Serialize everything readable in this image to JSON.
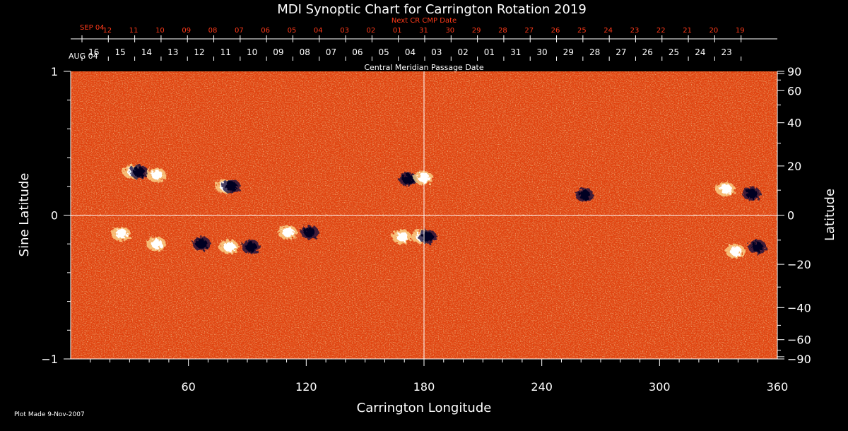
{
  "chart_data": {
    "type": "heatmap",
    "title": "MDI Synoptic Chart for Carrington Rotation 2019",
    "xlabel": "Carrington Longitude",
    "ylabel_left": "Sine Latitude",
    "ylabel_right": "Latitude",
    "xlim": [
      0,
      360
    ],
    "ylim": [
      -1,
      1
    ],
    "x_ticks": [
      60,
      120,
      180,
      240,
      300,
      360
    ],
    "y_ticks_left": [
      {
        "value": 1,
        "label": "1"
      },
      {
        "value": 0,
        "label": "0"
      },
      {
        "value": -1,
        "label": "−1"
      }
    ],
    "y_ticks_right_deg": [
      {
        "deg": 90,
        "label": "90"
      },
      {
        "deg": 60,
        "label": "60"
      },
      {
        "deg": 40,
        "label": "40"
      },
      {
        "deg": 20,
        "label": "20"
      },
      {
        "deg": 0,
        "label": "0"
      },
      {
        "deg": -20,
        "label": "−20"
      },
      {
        "deg": -40,
        "label": "−40"
      },
      {
        "deg": -60,
        "label": "−60"
      },
      {
        "deg": -90,
        "label": "−90"
      }
    ],
    "top_axis_next": {
      "title": "Next CR CMP Date",
      "start_label": "SEP 04",
      "days": [
        "12",
        "11",
        "10",
        "09",
        "08",
        "07",
        "06",
        "05",
        "04",
        "03",
        "02",
        "01",
        "31",
        "30",
        "29",
        "28",
        "27",
        "26",
        "25",
        "24",
        "23",
        "22",
        "21",
        "20",
        "19"
      ]
    },
    "top_axis_cmp": {
      "title": "Central Meridian Passage Date",
      "start_label": "AUG 04",
      "days": [
        "16",
        "15",
        "14",
        "13",
        "12",
        "11",
        "10",
        "09",
        "08",
        "07",
        "06",
        "05",
        "04",
        "03",
        "02",
        "01",
        "31",
        "30",
        "29",
        "28",
        "27",
        "26",
        "25",
        "24",
        "23"
      ]
    },
    "colors": {
      "background_field": "#e2430f",
      "positive_polarity": "#ffffff",
      "negative_polarity": "#000022",
      "axis": "#ffffff",
      "next_cr_text": "#ff3a1a"
    },
    "active_regions": [
      {
        "lon": 33,
        "sinlat": 0.3,
        "polarity": "mixed"
      },
      {
        "lon": 45,
        "sinlat": 0.28,
        "polarity": "positive"
      },
      {
        "lon": 80,
        "sinlat": 0.2,
        "polarity": "mixed"
      },
      {
        "lon": 170,
        "sinlat": 0.25,
        "polarity": "negative"
      },
      {
        "lon": 181,
        "sinlat": 0.26,
        "polarity": "positive"
      },
      {
        "lon": 260,
        "sinlat": 0.14,
        "polarity": "negative"
      },
      {
        "lon": 335,
        "sinlat": 0.18,
        "polarity": "positive"
      },
      {
        "lon": 345,
        "sinlat": 0.15,
        "polarity": "negative"
      },
      {
        "lon": 27,
        "sinlat": -0.13,
        "polarity": "positive"
      },
      {
        "lon": 45,
        "sinlat": -0.2,
        "polarity": "positive"
      },
      {
        "lon": 65,
        "sinlat": -0.2,
        "polarity": "negative"
      },
      {
        "lon": 82,
        "sinlat": -0.22,
        "polarity": "positive"
      },
      {
        "lon": 90,
        "sinlat": -0.22,
        "polarity": "negative"
      },
      {
        "lon": 112,
        "sinlat": -0.12,
        "polarity": "positive"
      },
      {
        "lon": 120,
        "sinlat": -0.12,
        "polarity": "negative"
      },
      {
        "lon": 170,
        "sinlat": -0.15,
        "polarity": "positive"
      },
      {
        "lon": 180,
        "sinlat": -0.15,
        "polarity": "mixed"
      },
      {
        "lon": 340,
        "sinlat": -0.25,
        "polarity": "positive"
      },
      {
        "lon": 348,
        "sinlat": -0.22,
        "polarity": "negative"
      }
    ]
  },
  "footer": {
    "plot_made": "Plot Made  9-Nov-2007"
  }
}
